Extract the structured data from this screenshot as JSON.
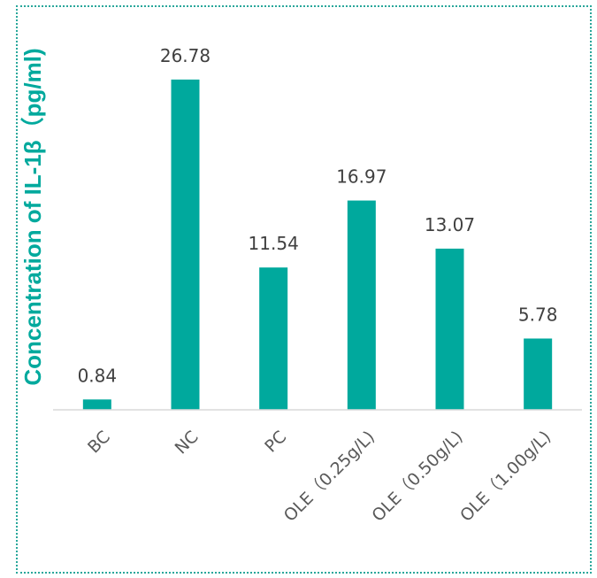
{
  "chart_data": {
    "type": "bar",
    "title": "",
    "xlabel": "",
    "ylabel": "Concentration of IL-1β（pg/ml)",
    "categories": [
      "BC",
      "NC",
      "PC",
      "OLE（0.25g/L)",
      "OLE（0.50g/L)",
      "OLE（1.00g/L)"
    ],
    "values": [
      0.84,
      26.78,
      11.54,
      16.97,
      13.07,
      5.78
    ],
    "data_labels": [
      "0.84",
      "26.78",
      "11.54",
      "16.97",
      "13.07",
      "5.78"
    ],
    "ylim": [
      0,
      30
    ],
    "grid": false,
    "legend": "none",
    "colors": {
      "bar": "#00a99d",
      "axis": "#d9d9d9",
      "ylabel": "#00a99d",
      "frame": "#2aa79b"
    }
  }
}
